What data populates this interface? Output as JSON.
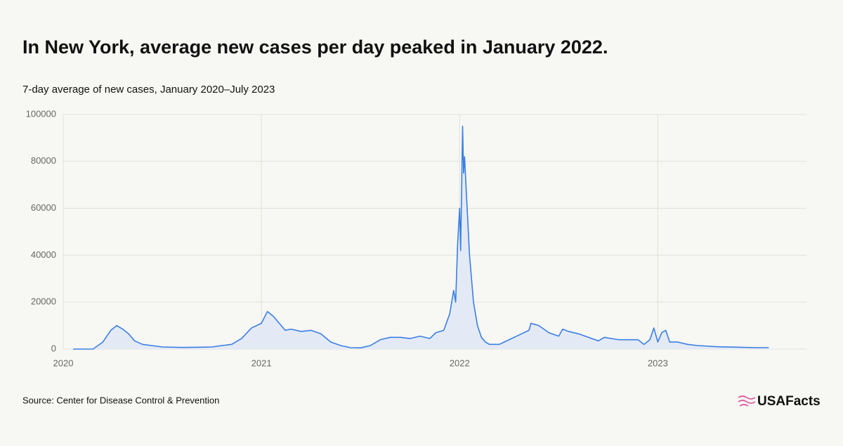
{
  "chart_data": {
    "type": "line",
    "title": "In New York, average new cases per day peaked in January 2022.",
    "subtitle": "7-day average of new cases, January 2020–July 2023",
    "source": "Source: Center for Disease Control & Prevention",
    "brand": "USAFacts",
    "x": [
      2020.05,
      2020.15,
      2020.2,
      2020.24,
      2020.27,
      2020.3,
      2020.33,
      2020.36,
      2020.4,
      2020.5,
      2020.6,
      2020.7,
      2020.75,
      2020.8,
      2020.85,
      2020.9,
      2020.95,
      2021.0,
      2021.03,
      2021.06,
      2021.1,
      2021.12,
      2021.15,
      2021.2,
      2021.25,
      2021.3,
      2021.35,
      2021.4,
      2021.45,
      2021.5,
      2021.55,
      2021.6,
      2021.65,
      2021.7,
      2021.75,
      2021.8,
      2021.85,
      2021.88,
      2021.92,
      2021.95,
      2021.97,
      2021.98,
      2021.99,
      2022.0,
      2022.005,
      2022.01,
      2022.015,
      2022.02,
      2022.025,
      2022.035,
      2022.05,
      2022.07,
      2022.09,
      2022.11,
      2022.13,
      2022.15,
      2022.2,
      2022.25,
      2022.3,
      2022.35,
      2022.36,
      2022.4,
      2022.45,
      2022.5,
      2022.52,
      2022.55,
      2022.6,
      2022.65,
      2022.7,
      2022.73,
      2022.8,
      2022.85,
      2022.9,
      2022.93,
      2022.96,
      2022.98,
      2023.0,
      2023.02,
      2023.04,
      2023.06,
      2023.1,
      2023.15,
      2023.2,
      2023.3,
      2023.4,
      2023.5,
      2023.56
    ],
    "series": [
      {
        "name": "7-day average of new cases",
        "color": "#3b7fe4",
        "values": [
          0,
          0,
          3000,
          8000,
          10000,
          8500,
          6500,
          3500,
          2000,
          900,
          700,
          800,
          900,
          1500,
          2000,
          4500,
          9000,
          11000,
          16000,
          14000,
          10000,
          8000,
          8500,
          7500,
          8000,
          6500,
          3000,
          1500,
          600,
          500,
          1500,
          4000,
          5000,
          5000,
          4500,
          5500,
          4500,
          7000,
          8000,
          15000,
          25000,
          20000,
          45000,
          60000,
          42000,
          67000,
          95000,
          75000,
          82000,
          65000,
          40000,
          20000,
          10000,
          5000,
          3000,
          2000,
          2000,
          4000,
          6000,
          8000,
          11000,
          10000,
          7000,
          5500,
          8500,
          7500,
          6500,
          5000,
          3500,
          5000,
          4000,
          4000,
          4000,
          2000,
          4000,
          9000,
          3000,
          7000,
          8000,
          3000,
          3000,
          2000,
          1500,
          1000,
          800,
          600,
          600
        ]
      }
    ],
    "xlim": [
      2020,
      2023.75
    ],
    "xticks": [
      2020,
      2021,
      2022,
      2023
    ],
    "ylim": [
      0,
      100000
    ],
    "yticks": [
      0,
      20000,
      40000,
      60000,
      80000,
      100000
    ],
    "grid": true,
    "area_fill": "#e3eaf6"
  }
}
